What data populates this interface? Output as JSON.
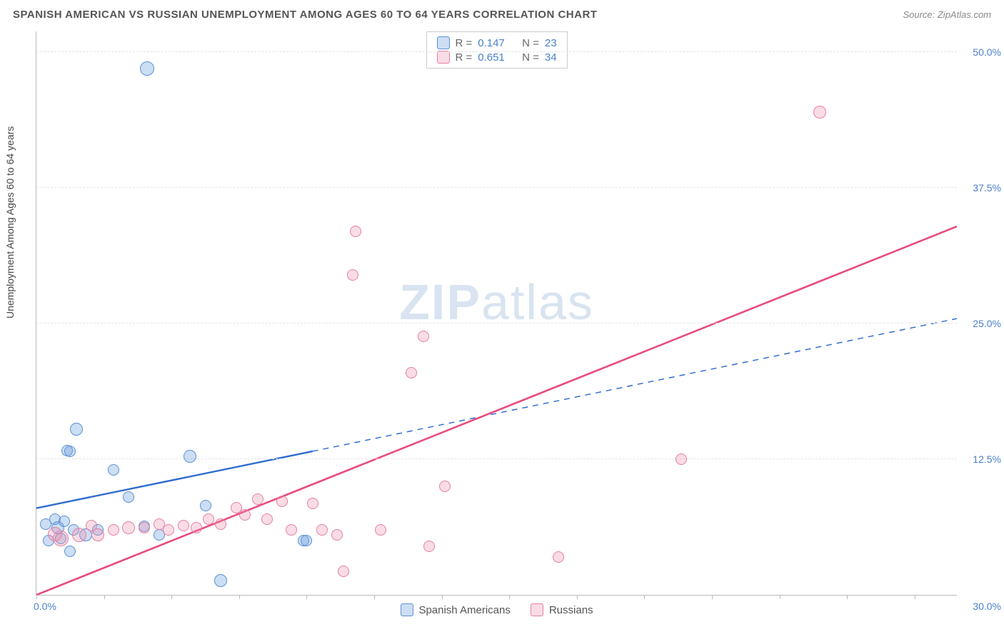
{
  "title": "SPANISH AMERICAN VS RUSSIAN UNEMPLOYMENT AMONG AGES 60 TO 64 YEARS CORRELATION CHART",
  "source": "Source: ZipAtlas.com",
  "y_axis_label": "Unemployment Among Ages 60 to 64 years",
  "watermark_a": "ZIP",
  "watermark_b": "atlas",
  "chart": {
    "type": "scatter-correlation",
    "background_color": "#ffffff",
    "grid_color": "#e5e5e5",
    "axis_color": "#bbbbbb",
    "tick_label_color": "#4a7fc9",
    "xlim": [
      0,
      30
    ],
    "ylim": [
      0,
      52
    ],
    "x_tick_positions": [
      0,
      2.2,
      4.4,
      6.6,
      8.8,
      11,
      13.2,
      15.4,
      17.6,
      19.8,
      22,
      24.2,
      26.4,
      28.6
    ],
    "x_start_label": "0.0%",
    "x_end_label": "30.0%",
    "y_ticks": [
      {
        "v": 12.5,
        "label": "12.5%"
      },
      {
        "v": 25.0,
        "label": "25.0%"
      },
      {
        "v": 37.5,
        "label": "37.5%"
      },
      {
        "v": 50.0,
        "label": "50.0%"
      }
    ],
    "series": [
      {
        "key": "spanish",
        "legend_label": "Spanish Americans",
        "color_fill": "rgba(108,160,220,0.35)",
        "color_stroke": "#5b8fd6",
        "marker_radius_min": 7,
        "marker_radius_max": 11,
        "R_label": "R =",
        "R_value": "0.147",
        "N_label": "N =",
        "N_value": "23",
        "regression": {
          "x1": 0,
          "y1": 8,
          "x2": 30,
          "y2": 25.5,
          "solid_until_x": 9,
          "color": "#2e6bd0",
          "width": 2.4
        },
        "points": [
          {
            "x": 0.3,
            "y": 6.5,
            "r": 8
          },
          {
            "x": 0.4,
            "y": 5.0,
            "r": 8
          },
          {
            "x": 0.6,
            "y": 7.0,
            "r": 8
          },
          {
            "x": 0.7,
            "y": 6.2,
            "r": 9
          },
          {
            "x": 0.8,
            "y": 5.2,
            "r": 8
          },
          {
            "x": 0.9,
            "y": 6.8,
            "r": 8
          },
          {
            "x": 1.0,
            "y": 13.3,
            "r": 8
          },
          {
            "x": 1.1,
            "y": 13.2,
            "r": 8
          },
          {
            "x": 1.1,
            "y": 4.0,
            "r": 8
          },
          {
            "x": 1.2,
            "y": 6.0,
            "r": 8
          },
          {
            "x": 1.3,
            "y": 15.3,
            "r": 9
          },
          {
            "x": 1.6,
            "y": 5.5,
            "r": 9
          },
          {
            "x": 2.0,
            "y": 6.0,
            "r": 8
          },
          {
            "x": 2.5,
            "y": 11.5,
            "r": 8
          },
          {
            "x": 3.0,
            "y": 9.0,
            "r": 8
          },
          {
            "x": 3.5,
            "y": 6.3,
            "r": 8
          },
          {
            "x": 3.6,
            "y": 48.5,
            "r": 10
          },
          {
            "x": 4.0,
            "y": 5.5,
            "r": 8
          },
          {
            "x": 5.0,
            "y": 12.8,
            "r": 9
          },
          {
            "x": 5.5,
            "y": 8.2,
            "r": 8
          },
          {
            "x": 6.0,
            "y": 1.3,
            "r": 9
          },
          {
            "x": 8.7,
            "y": 5.0,
            "r": 8
          },
          {
            "x": 8.8,
            "y": 5.0,
            "r": 8
          }
        ]
      },
      {
        "key": "russian",
        "legend_label": "Russians",
        "color_fill": "rgba(240,140,170,0.30)",
        "color_stroke": "#e57fa3",
        "marker_radius_min": 7,
        "marker_radius_max": 11,
        "R_label": "R =",
        "R_value": "0.651",
        "N_label": "N =",
        "N_value": "34",
        "regression": {
          "x1": 0,
          "y1": 0,
          "x2": 30,
          "y2": 34,
          "solid_until_x": 30,
          "color": "#e94b7b",
          "width": 2.6
        },
        "points": [
          {
            "x": 0.6,
            "y": 5.6,
            "r": 10
          },
          {
            "x": 0.8,
            "y": 5.2,
            "r": 11
          },
          {
            "x": 1.4,
            "y": 5.5,
            "r": 10
          },
          {
            "x": 1.8,
            "y": 6.4,
            "r": 8
          },
          {
            "x": 2.0,
            "y": 5.5,
            "r": 9
          },
          {
            "x": 2.5,
            "y": 6.0,
            "r": 8
          },
          {
            "x": 3.0,
            "y": 6.2,
            "r": 9
          },
          {
            "x": 3.5,
            "y": 6.2,
            "r": 8
          },
          {
            "x": 4.0,
            "y": 6.5,
            "r": 8
          },
          {
            "x": 4.3,
            "y": 6.0,
            "r": 8
          },
          {
            "x": 4.8,
            "y": 6.4,
            "r": 8
          },
          {
            "x": 5.2,
            "y": 6.2,
            "r": 8
          },
          {
            "x": 5.6,
            "y": 7.0,
            "r": 8
          },
          {
            "x": 6.0,
            "y": 6.5,
            "r": 8
          },
          {
            "x": 6.5,
            "y": 8.0,
            "r": 8
          },
          {
            "x": 6.8,
            "y": 7.4,
            "r": 8
          },
          {
            "x": 7.2,
            "y": 8.8,
            "r": 8
          },
          {
            "x": 7.5,
            "y": 7.0,
            "r": 8
          },
          {
            "x": 8.0,
            "y": 8.6,
            "r": 8
          },
          {
            "x": 8.3,
            "y": 6.0,
            "r": 8
          },
          {
            "x": 9.0,
            "y": 8.4,
            "r": 8
          },
          {
            "x": 9.3,
            "y": 6.0,
            "r": 8
          },
          {
            "x": 9.8,
            "y": 5.5,
            "r": 8
          },
          {
            "x": 10.0,
            "y": 2.2,
            "r": 8
          },
          {
            "x": 10.3,
            "y": 29.5,
            "r": 8
          },
          {
            "x": 10.4,
            "y": 33.5,
            "r": 8
          },
          {
            "x": 11.2,
            "y": 6.0,
            "r": 8
          },
          {
            "x": 12.2,
            "y": 20.5,
            "r": 8
          },
          {
            "x": 12.6,
            "y": 23.8,
            "r": 8
          },
          {
            "x": 12.8,
            "y": 4.5,
            "r": 8
          },
          {
            "x": 13.3,
            "y": 10.0,
            "r": 8
          },
          {
            "x": 17.0,
            "y": 3.5,
            "r": 8
          },
          {
            "x": 21.0,
            "y": 12.5,
            "r": 8
          },
          {
            "x": 25.5,
            "y": 44.5,
            "r": 9
          }
        ]
      }
    ]
  }
}
